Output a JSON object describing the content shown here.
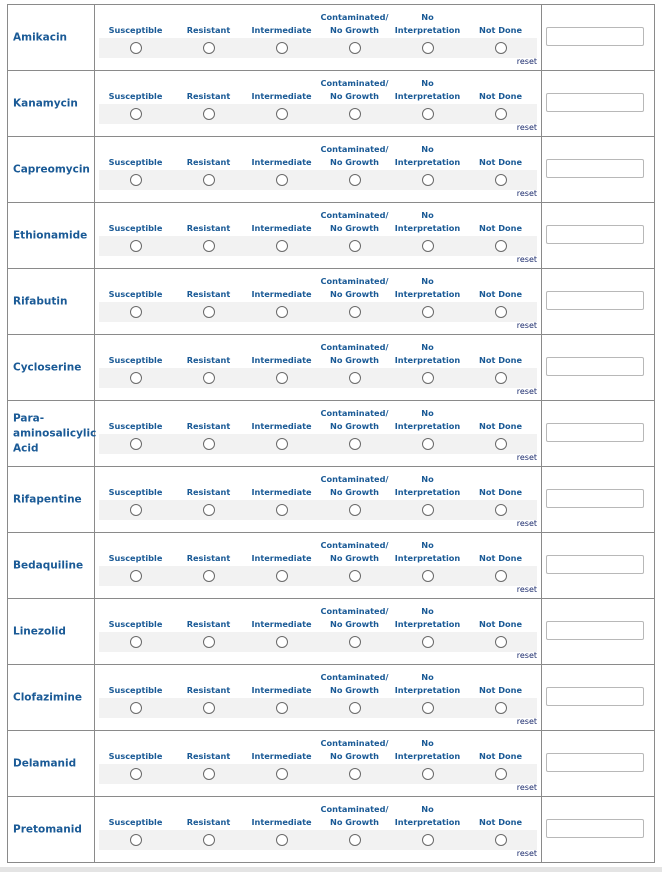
{
  "options": [
    "Susceptible",
    "Resistant",
    "Intermediate",
    "Contaminated/\nNo Growth",
    "No\nInterpretation",
    "Not Done"
  ],
  "reset_label": "reset",
  "drugs": [
    "Amikacin",
    "Kanamycin",
    "Capreomycin",
    "Ethionamide",
    "Rifabutin",
    "Cycloserine",
    "Para-\naminosalicylic\nAcid",
    "Rifapentine",
    "Bedaquiline",
    "Linezolid",
    "Clofazimine",
    "Delamanid",
    "Pretomanid"
  ],
  "colors": {
    "label": "#1a5a96",
    "reset": "#1a2a6c",
    "strip": "#f2f2f2",
    "border": "#8a8a8a"
  }
}
